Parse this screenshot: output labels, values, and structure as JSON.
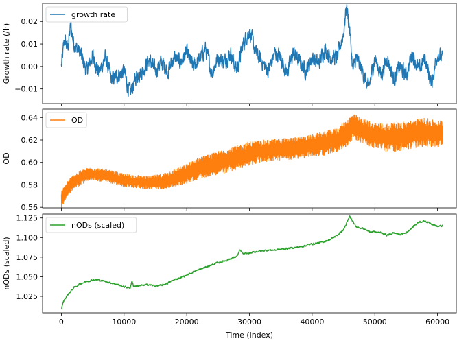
{
  "chart_data": [
    {
      "type": "line",
      "xlim": [
        -3000,
        63000
      ],
      "ylim": [
        -0.0165,
        0.028
      ],
      "yticks": [
        -0.01,
        0.0,
        0.01,
        0.02
      ],
      "ytick_labels": [
        "−0.01",
        "0.00",
        "0.01",
        "0.02"
      ],
      "xticks": [
        0,
        10000,
        20000,
        30000,
        40000,
        50000,
        60000
      ],
      "xtick_labels": [],
      "ylabel": "Growth rate (/h)",
      "xlabel": "",
      "legend_position": "top-left",
      "series": [
        {
          "name": "growth rate",
          "color": "#1f77b4",
          "x": [
            0,
            500,
            1000,
            1500,
            2000,
            3000,
            4000,
            5000,
            6000,
            7000,
            8000,
            9000,
            10000,
            10500,
            11000,
            12000,
            13000,
            14000,
            15000,
            16000,
            17000,
            18000,
            19000,
            20000,
            21000,
            22000,
            23000,
            24000,
            25000,
            26000,
            27000,
            28000,
            29000,
            30000,
            31000,
            32000,
            33000,
            34000,
            35000,
            36000,
            37000,
            38000,
            39000,
            40000,
            41000,
            42000,
            43000,
            44000,
            45000,
            45500,
            46000,
            46500,
            47000,
            48000,
            49000,
            50000,
            51000,
            52000,
            53000,
            54000,
            55000,
            56000,
            57000,
            58000,
            59000,
            60000,
            60800
          ],
          "values": [
            0.0,
            0.012,
            0.008,
            0.018,
            0.01,
            0.006,
            -0.002,
            0.005,
            -0.003,
            0.004,
            -0.006,
            -0.004,
            -0.002,
            -0.008,
            -0.012,
            -0.004,
            -0.002,
            0.003,
            -0.002,
            0.002,
            -0.002,
            0.004,
            0.002,
            0.006,
            0.0,
            0.003,
            0.008,
            -0.003,
            0.004,
            0.002,
            0.006,
            -0.002,
            0.01,
            0.016,
            0.006,
            0.002,
            -0.002,
            0.006,
            0.004,
            -0.003,
            0.006,
            0.002,
            -0.002,
            0.004,
            0.001,
            0.008,
            0.004,
            0.004,
            0.015,
            0.027,
            0.016,
            -0.002,
            0.004,
            -0.002,
            -0.01,
            0.004,
            -0.004,
            0.004,
            -0.006,
            0.0,
            -0.004,
            0.006,
            -0.002,
            0.004,
            -0.008,
            0.006,
            0.003
          ]
        }
      ]
    },
    {
      "type": "line",
      "xlim": [
        -3000,
        63000
      ],
      "ylim": [
        0.5595,
        0.6475
      ],
      "yticks": [
        0.56,
        0.58,
        0.6,
        0.62,
        0.64
      ],
      "ytick_labels": [
        "0.56",
        "0.58",
        "0.60",
        "0.62",
        "0.64"
      ],
      "xticks": [
        0,
        10000,
        20000,
        30000,
        40000,
        50000,
        60000
      ],
      "xtick_labels": [],
      "ylabel": "OD",
      "xlabel": "",
      "legend_position": "top-left",
      "series": [
        {
          "name": "OD",
          "color": "#ff7f0e",
          "x": [
            0,
            1000,
            2000,
            3000,
            4000,
            5000,
            6000,
            8000,
            10000,
            12000,
            14000,
            16000,
            18000,
            20000,
            22000,
            24000,
            26000,
            28000,
            30000,
            32000,
            34000,
            36000,
            38000,
            40000,
            42000,
            44000,
            45500,
            46500,
            48000,
            50000,
            52000,
            54000,
            56000,
            58000,
            60000,
            60800
          ],
          "values": [
            0.567,
            0.577,
            0.583,
            0.586,
            0.589,
            0.59,
            0.589,
            0.587,
            0.584,
            0.583,
            0.582,
            0.583,
            0.586,
            0.59,
            0.595,
            0.598,
            0.601,
            0.604,
            0.608,
            0.61,
            0.611,
            0.612,
            0.613,
            0.615,
            0.617,
            0.62,
            0.626,
            0.632,
            0.628,
            0.624,
            0.622,
            0.623,
            0.625,
            0.627,
            0.625,
            0.627
          ],
          "band": [
            0.008,
            0.007,
            0.007,
            0.007,
            0.006,
            0.006,
            0.006,
            0.006,
            0.006,
            0.006,
            0.006,
            0.007,
            0.008,
            0.009,
            0.01,
            0.01,
            0.011,
            0.011,
            0.011,
            0.01,
            0.01,
            0.01,
            0.01,
            0.01,
            0.011,
            0.011,
            0.012,
            0.012,
            0.011,
            0.012,
            0.013,
            0.013,
            0.013,
            0.013,
            0.012,
            0.012
          ]
        }
      ]
    },
    {
      "type": "line",
      "xlim": [
        -3000,
        63000
      ],
      "ylim": [
        1.004,
        1.13
      ],
      "yticks": [
        1.025,
        1.05,
        1.075,
        1.1,
        1.125
      ],
      "ytick_labels": [
        "1.025",
        "1.050",
        "1.075",
        "1.100",
        "1.125"
      ],
      "xticks": [
        0,
        10000,
        20000,
        30000,
        40000,
        50000,
        60000
      ],
      "xtick_labels": [
        "0",
        "10000",
        "20000",
        "30000",
        "40000",
        "50000",
        "60000"
      ],
      "ylabel": "nODs (scaled)",
      "xlabel": "Time (index)",
      "legend_position": "top-left",
      "series": [
        {
          "name": "nODs (scaled)",
          "color": "#2ca02c",
          "x": [
            0,
            300,
            600,
            1000,
            2000,
            3000,
            4000,
            5000,
            6000,
            7000,
            8000,
            9000,
            10000,
            11000,
            11300,
            11500,
            12000,
            13000,
            14000,
            15000,
            16000,
            17000,
            18000,
            19000,
            20000,
            21000,
            22000,
            23000,
            24000,
            25000,
            26000,
            27000,
            28000,
            28500,
            29000,
            30000,
            31000,
            32000,
            33000,
            34000,
            35000,
            36000,
            37000,
            38000,
            39000,
            40000,
            41000,
            42000,
            43000,
            44000,
            45000,
            45500,
            46000,
            46500,
            47000,
            48000,
            49000,
            50000,
            51000,
            52000,
            53000,
            54000,
            55000,
            56000,
            57000,
            58000,
            59000,
            60000,
            60800
          ],
          "values": [
            1.009,
            1.018,
            1.022,
            1.027,
            1.036,
            1.041,
            1.044,
            1.046,
            1.046,
            1.044,
            1.042,
            1.04,
            1.037,
            1.036,
            1.045,
            1.038,
            1.038,
            1.039,
            1.04,
            1.038,
            1.039,
            1.042,
            1.046,
            1.049,
            1.052,
            1.056,
            1.059,
            1.062,
            1.065,
            1.068,
            1.07,
            1.073,
            1.076,
            1.084,
            1.079,
            1.08,
            1.082,
            1.083,
            1.084,
            1.084,
            1.085,
            1.086,
            1.087,
            1.088,
            1.09,
            1.092,
            1.093,
            1.095,
            1.098,
            1.103,
            1.11,
            1.118,
            1.127,
            1.12,
            1.114,
            1.112,
            1.108,
            1.107,
            1.106,
            1.103,
            1.106,
            1.104,
            1.106,
            1.113,
            1.12,
            1.121,
            1.118,
            1.114,
            1.115
          ]
        }
      ]
    }
  ]
}
